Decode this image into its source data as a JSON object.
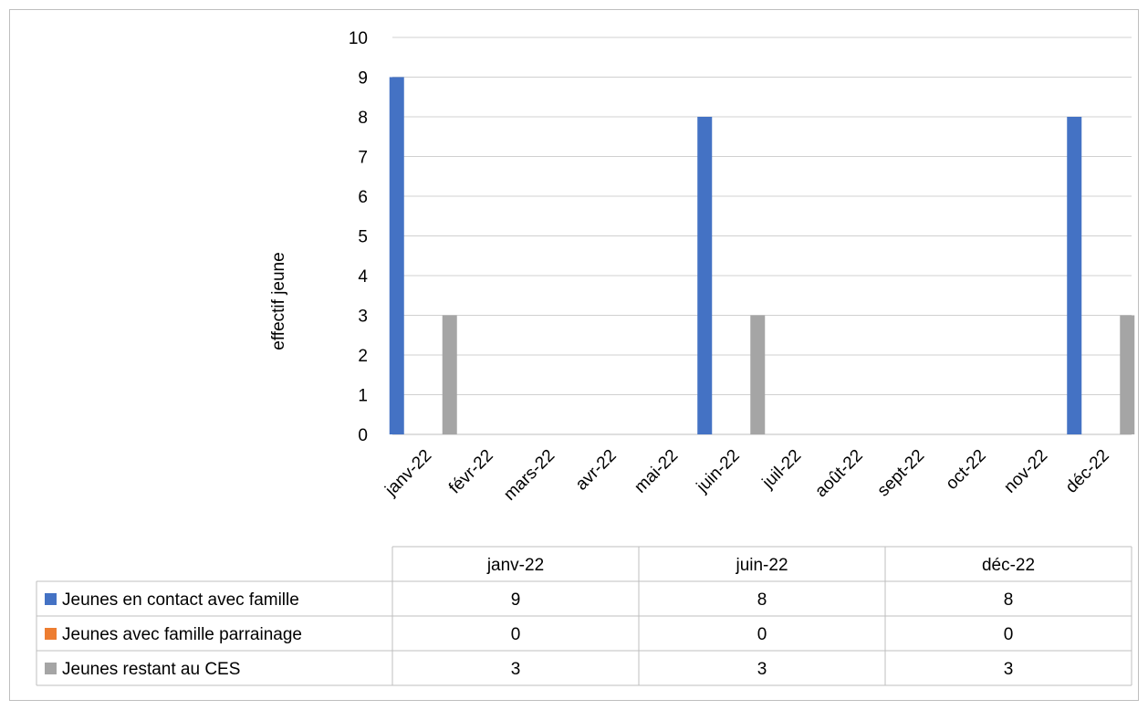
{
  "chart_data": {
    "type": "bar",
    "categories": [
      "janv-22",
      "févr-22",
      "mars-22",
      "avr-22",
      "mai-22",
      "juin-22",
      "juil-22",
      "août-22",
      "sept-22",
      "oct-22",
      "nov-22",
      "déc-22"
    ],
    "ylabel": "effectif jeune",
    "ylim": [
      0,
      10
    ],
    "yticks": [
      0,
      1,
      2,
      3,
      4,
      5,
      6,
      7,
      8,
      9,
      10
    ],
    "grid": true,
    "series": [
      {
        "name": "Jeunes en contact avec famille",
        "color": "#4472c4",
        "values": [
          9,
          null,
          null,
          null,
          null,
          8,
          null,
          null,
          null,
          null,
          null,
          8
        ]
      },
      {
        "name": "Jeunes avec famille  parrainage",
        "color": "#ed7d31",
        "values": [
          0,
          null,
          null,
          null,
          null,
          0,
          null,
          null,
          null,
          null,
          null,
          0
        ]
      },
      {
        "name": "Jeunes restant au CES",
        "color": "#a5a5a5",
        "values": [
          3,
          null,
          null,
          null,
          null,
          3,
          null,
          null,
          null,
          null,
          null,
          3
        ]
      }
    ],
    "data_table": {
      "columns": [
        "janv-22",
        "juin-22",
        "déc-22"
      ],
      "rows": [
        {
          "label": "Jeunes en contact avec famille",
          "color": "#4472c4",
          "values": [
            "9",
            "8",
            "8"
          ]
        },
        {
          "label": "Jeunes avec famille  parrainage",
          "color": "#ed7d31",
          "values": [
            "0",
            "0",
            "0"
          ]
        },
        {
          "label": "Jeunes restant au CES",
          "color": "#a5a5a5",
          "values": [
            "3",
            "3",
            "3"
          ]
        }
      ]
    }
  }
}
